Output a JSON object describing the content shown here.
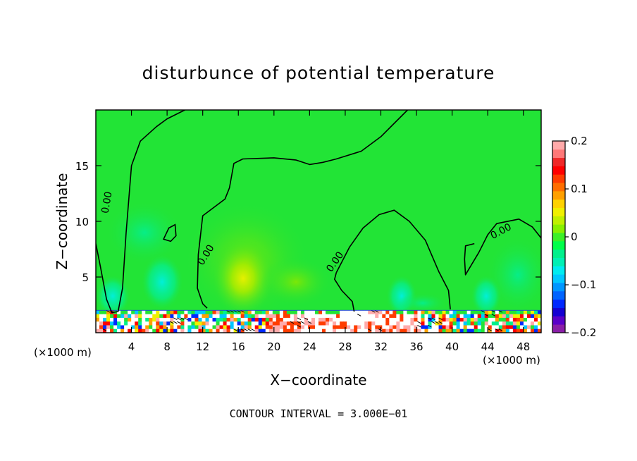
{
  "chart_data": {
    "type": "heatmap",
    "title": "disturbunce of potential temperature",
    "xlabel": "X−coordinate",
    "ylabel": "Z−coordinate",
    "x_unit_label": "(×1000 m)",
    "y_unit_label": "(×1000 m)",
    "xlim": [
      0,
      50
    ],
    "ylim": [
      0,
      20
    ],
    "x_ticks": [
      4,
      8,
      12,
      16,
      20,
      24,
      28,
      32,
      36,
      40,
      44,
      48
    ],
    "y_ticks": [
      5,
      10,
      15
    ],
    "colorbar": {
      "min": -0.2,
      "max": 0.2,
      "ticks": [
        0.2,
        0.1,
        0,
        -0.1,
        -0.2
      ],
      "tick_labels": [
        "0.2",
        "0.1",
        "0",
        "−0.1",
        "−0.2"
      ],
      "colors": [
        "#8a1ea8",
        "#5a00c8",
        "#1400d2",
        "#0028ff",
        "#0064ff",
        "#0096ff",
        "#00c8ff",
        "#00ecf0",
        "#00f0b4",
        "#00f08c",
        "#00ff4a",
        "#3cf028",
        "#88f000",
        "#c0f000",
        "#f0f000",
        "#ffd200",
        "#ffa000",
        "#ff6e00",
        "#ff3c00",
        "#ff0000",
        "#f02828",
        "#ff7878",
        "#ffaaaa"
      ]
    },
    "background_color": "#22e436",
    "contour_interval_text": "CONTOUR INTERVAL = 3.000E−01",
    "contour_labels": [
      "0.00",
      "0.00",
      "0.00",
      "0.00",
      "0.00"
    ],
    "contours": [
      {
        "label": "0.00",
        "points": [
          [
            0,
            8
          ],
          [
            0.5,
            6
          ],
          [
            1.2,
            3
          ],
          [
            1.8,
            1.8
          ],
          [
            2.5,
            1.9
          ],
          [
            3,
            4
          ],
          [
            3.4,
            9
          ],
          [
            4,
            15
          ],
          [
            5,
            17.2
          ],
          [
            6.8,
            18.5
          ],
          [
            8,
            19.2
          ],
          [
            10,
            20
          ]
        ]
      },
      {
        "label": "0.00",
        "points": [
          [
            35,
            20
          ],
          [
            33.5,
            18.8
          ],
          [
            32,
            17.6
          ],
          [
            29.8,
            16.3
          ],
          [
            27,
            15.6
          ],
          [
            25.5,
            15.3
          ],
          [
            24,
            15.1
          ],
          [
            22.5,
            15.5
          ],
          [
            20,
            15.7
          ],
          [
            16.5,
            15.6
          ],
          [
            15.5,
            15.2
          ],
          [
            15,
            13
          ],
          [
            14.5,
            12
          ],
          [
            12,
            10.5
          ],
          [
            11.5,
            7
          ],
          [
            11.4,
            4
          ],
          [
            12,
            2.6
          ],
          [
            12.5,
            2.2
          ]
        ]
      },
      {
        "label": "0.00",
        "points": [
          [
            27,
            5.4
          ],
          [
            28.5,
            7.7
          ],
          [
            30,
            9.4
          ],
          [
            31.8,
            10.6
          ],
          [
            33.5,
            11
          ],
          [
            35.2,
            10
          ],
          [
            37,
            8.3
          ],
          [
            38.5,
            5.5
          ],
          [
            39.6,
            3.8
          ],
          [
            39.8,
            2.1
          ]
        ]
      },
      {
        "label": "0.00",
        "points": [
          [
            29,
            1.9
          ],
          [
            28.8,
            2.8
          ],
          [
            27.6,
            3.8
          ],
          [
            26.8,
            4.8
          ],
          [
            27,
            5.4
          ]
        ]
      },
      {
        "label": "0.00",
        "points": [
          [
            50,
            8.5
          ],
          [
            49,
            9.5
          ],
          [
            47.5,
            10.2
          ],
          [
            45,
            9.8
          ],
          [
            44,
            8.8
          ],
          [
            43,
            7.2
          ],
          [
            41.5,
            5.2
          ],
          [
            41.4,
            6.6
          ],
          [
            41.5,
            7.8
          ],
          [
            42.5,
            8
          ]
        ]
      }
    ],
    "closed_contours": [
      {
        "points": [
          [
            7.6,
            8.4
          ],
          [
            8.2,
            9.4
          ],
          [
            8.9,
            9.7
          ],
          [
            9.0,
            8.7
          ],
          [
            8.4,
            8.2
          ],
          [
            7.6,
            8.4
          ]
        ]
      }
    ]
  }
}
